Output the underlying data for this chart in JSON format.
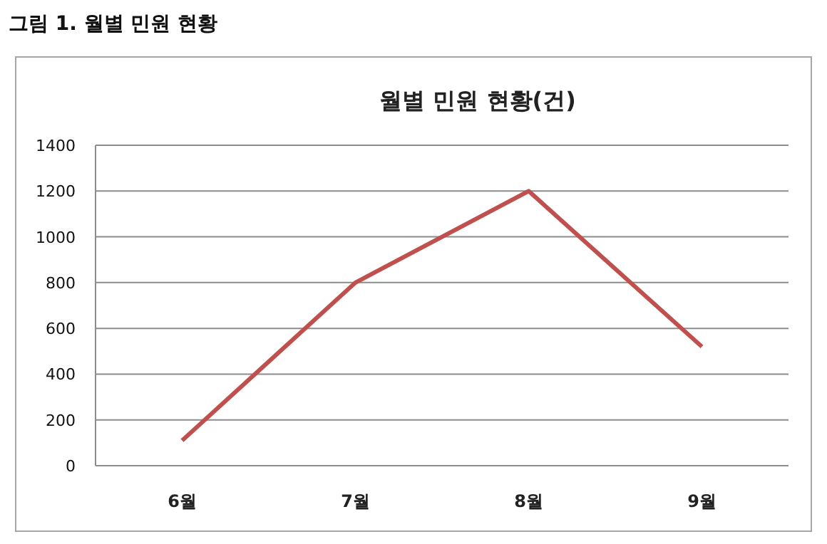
{
  "chart_data": {
    "type": "line",
    "title": "월별 민원 현황(건)",
    "annotations": [
      "그림 1. 월별 민원 현황"
    ],
    "categories": [
      "6월",
      "7월",
      "8월",
      "9월"
    ],
    "series": [
      {
        "color": "#c0504d",
        "values": [
          110,
          800,
          1200,
          520
        ]
      }
    ],
    "ylim": [
      0,
      1400
    ],
    "yticks": [
      0,
      200,
      400,
      600,
      800,
      1000,
      1200,
      1400
    ],
    "grid": "y",
    "marker": "none",
    "line_style": "solid"
  }
}
